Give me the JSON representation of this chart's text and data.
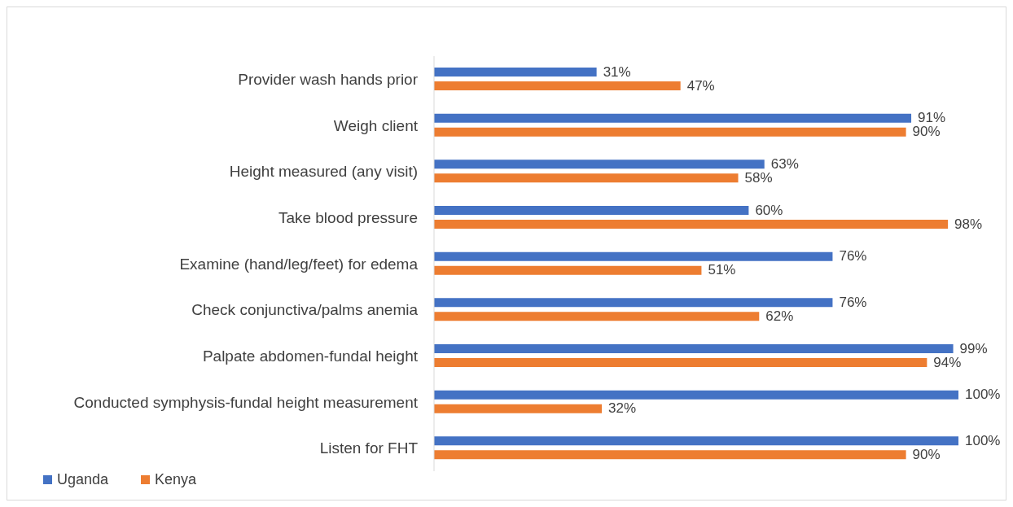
{
  "chart_data": {
    "type": "bar",
    "orientation": "horizontal",
    "categories": [
      "Provider wash hands prior",
      "Weigh client",
      "Height measured (any visit)",
      "Take blood pressure",
      "Examine (hand/leg/feet) for edema",
      "Check conjunctiva/palms anemia",
      "Palpate abdomen-fundal height",
      "Conducted symphysis-fundal height measurement",
      "Listen for FHT"
    ],
    "series": [
      {
        "name": "Uganda",
        "color": "#4472c4",
        "values": [
          31,
          91,
          63,
          60,
          76,
          76,
          99,
          100,
          100
        ],
        "value_labels": [
          "31%",
          "91%",
          "63%",
          "60%",
          "76%",
          "76%",
          "99%",
          "100%",
          "100%"
        ]
      },
      {
        "name": "Kenya",
        "color": "#ed7d31",
        "values": [
          47,
          90,
          58,
          98,
          51,
          62,
          94,
          32,
          90
        ],
        "value_labels": [
          "47%",
          "90%",
          "58%",
          "98%",
          "51%",
          "62%",
          "94%",
          "32%",
          "90%"
        ]
      }
    ],
    "legend": "bottom left"
  }
}
